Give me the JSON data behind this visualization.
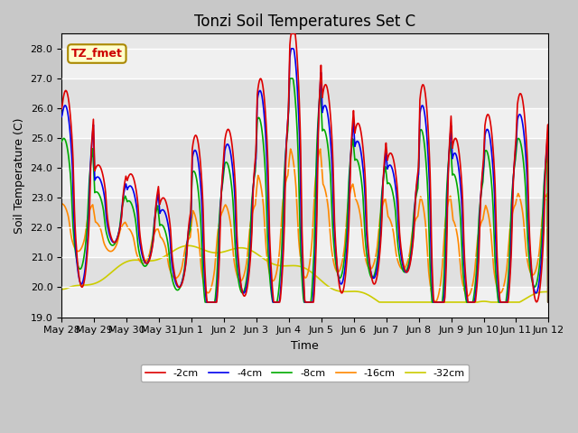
{
  "title": "Tonzi Soil Temperatures Set C",
  "xlabel": "Time",
  "ylabel": "Soil Temperature (C)",
  "ylim": [
    19.0,
    28.5
  ],
  "annotation_text": "TZ_fmet",
  "annotation_color": "#cc0000",
  "annotation_bg": "#ffffcc",
  "annotation_edge": "#aa8800",
  "series_colors": {
    "-2cm": "#dd0000",
    "-4cm": "#0000ee",
    "-8cm": "#00aa00",
    "-16cm": "#ff8800",
    "-32cm": "#cccc00"
  },
  "legend_labels": [
    "-2cm",
    "-4cm",
    "-8cm",
    "-16cm",
    "-32cm"
  ],
  "bg_color": "#e8e8e8",
  "title_fontsize": 12,
  "axis_fontsize": 9,
  "tick_fontsize": 8,
  "tick_positions": [
    0,
    1,
    2,
    3,
    4,
    5,
    6,
    7,
    8,
    9,
    10,
    11,
    12,
    13,
    14,
    15
  ],
  "tick_labels": [
    "May 28",
    "May 29",
    "May 30",
    "May 31",
    "Jun 1",
    "Jun 2",
    "Jun 3",
    "Jun 4",
    "Jun 5",
    "Jun 6",
    "Jun 7",
    "Jun 8",
    "Jun 9",
    "Jun 10",
    "Jun 11",
    "Jun 12"
  ],
  "yticks": [
    19.0,
    20.0,
    21.0,
    22.0,
    23.0,
    24.0,
    25.0,
    26.0,
    27.0,
    28.0
  ]
}
